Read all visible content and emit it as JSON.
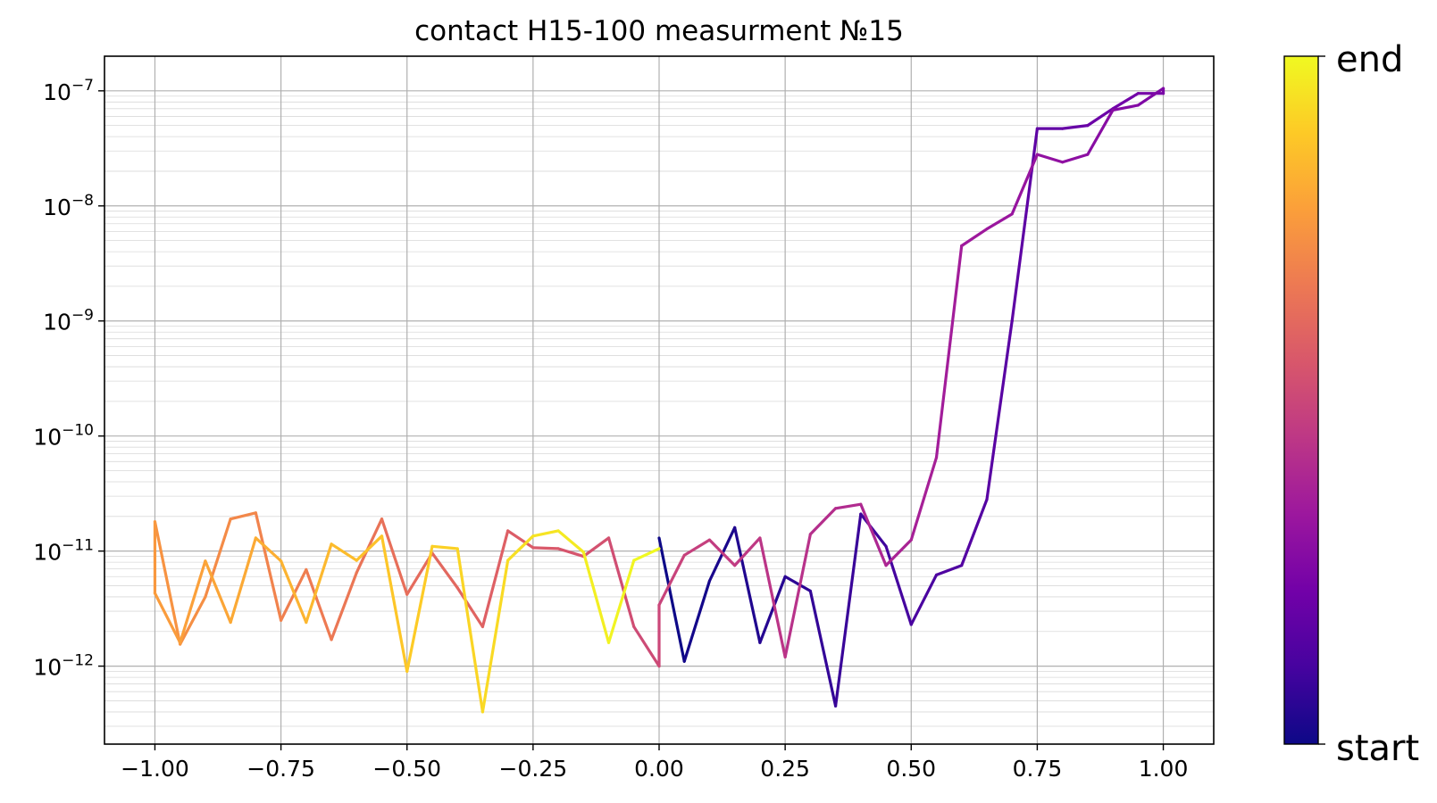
{
  "chart_data": {
    "type": "line",
    "title": "contact H15-100 measurment №15",
    "xlabel": "",
    "ylabel": "",
    "xlim": [
      -1.1,
      1.1
    ],
    "ylim": [
      2.1e-13,
      2e-07
    ],
    "yscale": "log",
    "grid": true,
    "x_ticks": [
      "−1.00",
      "−0.75",
      "−0.50",
      "−0.25",
      "0.00",
      "0.25",
      "0.50",
      "0.75",
      "1.00"
    ],
    "x_tick_values": [
      -1.0,
      -0.75,
      -0.5,
      -0.25,
      0.0,
      0.25,
      0.5,
      0.75,
      1.0
    ],
    "y_ticks": [
      {
        "base": "10",
        "exp": "−7",
        "value": 1e-07
      },
      {
        "base": "10",
        "exp": "−8",
        "value": 1e-08
      },
      {
        "base": "10",
        "exp": "−9",
        "value": 1e-09
      },
      {
        "base": "10",
        "exp": "−10",
        "value": 1e-10
      },
      {
        "base": "10",
        "exp": "−11",
        "value": 1e-11
      },
      {
        "base": "10",
        "exp": "−12",
        "value": 1e-12
      }
    ],
    "colormap": "plasma",
    "colormap_stops": [
      "#0d0887",
      "#46039f",
      "#7201a8",
      "#9c179e",
      "#bd3786",
      "#d8576b",
      "#ed7953",
      "#fb9f3a",
      "#fdca26",
      "#f0f921"
    ],
    "colorbar": {
      "low_label": "start",
      "high_label": "end"
    },
    "series": [
      {
        "x": [
          0.0,
          0.05,
          0.1,
          0.15,
          0.2,
          0.25,
          0.3,
          0.35,
          0.4,
          0.45,
          0.5,
          0.55,
          0.6,
          0.65,
          0.7,
          0.75,
          0.8,
          0.85,
          0.9,
          0.95,
          1.0,
          1.0,
          0.95,
          0.9,
          0.85,
          0.8,
          0.75,
          0.7,
          0.65,
          0.6,
          0.55,
          0.5,
          0.45,
          0.4,
          0.35,
          0.3,
          0.25,
          0.2,
          0.15,
          0.1,
          0.05,
          0.0,
          0.0,
          -0.05,
          -0.1,
          -0.15,
          -0.2,
          -0.25,
          -0.3,
          -0.35,
          -0.4,
          -0.45,
          -0.5,
          -0.55,
          -0.6,
          -0.65,
          -0.7,
          -0.75,
          -0.8,
          -0.85,
          -0.9,
          -0.95,
          -1.0,
          -1.0,
          -0.95,
          -0.9,
          -0.85,
          -0.8,
          -0.75,
          -0.7,
          -0.65,
          -0.6,
          -0.55,
          -0.5,
          -0.45,
          -0.4,
          -0.35,
          -0.3,
          -0.25,
          -0.2,
          -0.15,
          -0.1,
          -0.05,
          0.0
        ],
        "y": [
          1.3e-11,
          1.1e-12,
          5.5e-12,
          1.6e-11,
          1.6e-12,
          6e-12,
          4.5e-12,
          4.5e-13,
          2.1e-11,
          1.1e-11,
          2.3e-12,
          6.2e-12,
          7.5e-12,
          2.8e-11,
          1e-09,
          4.7e-08,
          4.7e-08,
          5e-08,
          7e-08,
          9.5e-08,
          9.5e-08,
          1.05e-07,
          7.5e-08,
          6.8e-08,
          2.8e-08,
          2.4e-08,
          2.8e-08,
          8.5e-09,
          6.3e-09,
          4.5e-09,
          6.5e-11,
          1.25e-11,
          7.5e-12,
          2.55e-11,
          2.35e-11,
          1.4e-11,
          1.2e-12,
          1.3e-11,
          7.5e-12,
          1.25e-11,
          9.2e-12,
          3.4e-12,
          1e-12,
          2.2e-12,
          1.3e-11,
          9e-12,
          1.05e-11,
          1.07e-11,
          1.5e-11,
          2.2e-12,
          4.8e-12,
          9.6e-12,
          4.2e-12,
          1.9e-11,
          6.5e-12,
          1.7e-12,
          6.9e-12,
          2.5e-12,
          2.15e-11,
          1.9e-11,
          4e-12,
          1.55e-12,
          1.8e-11,
          4.3e-12,
          1.6e-12,
          8.2e-12,
          2.4e-12,
          1.3e-11,
          8.2e-12,
          2.4e-12,
          1.15e-11,
          8.3e-12,
          1.35e-11,
          9e-13,
          1.1e-11,
          1.05e-11,
          4e-13,
          8.3e-12,
          1.35e-11,
          1.5e-11,
          9.8e-12,
          1.6e-12,
          8.3e-12,
          1.05e-11
        ]
      }
    ]
  }
}
